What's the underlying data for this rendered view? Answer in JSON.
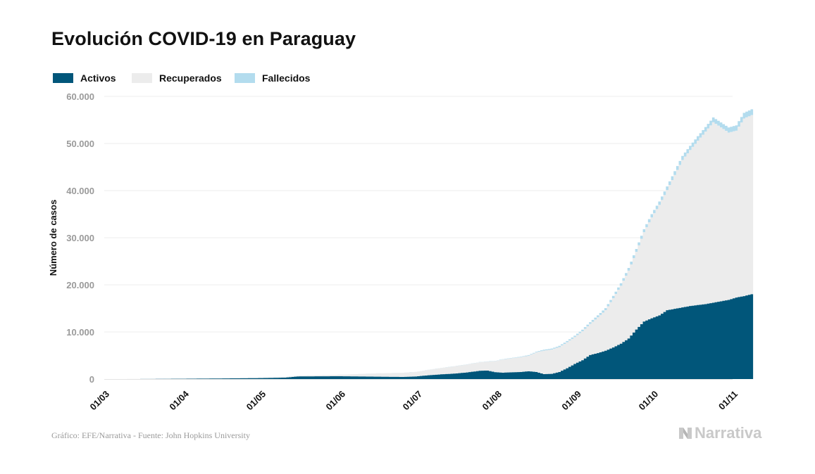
{
  "chart_data": {
    "type": "area",
    "stacked": true,
    "title": "Evolución COVID-19 en Paraguay",
    "ylabel": "Número de casos",
    "xlabel": "",
    "ylim": [
      0,
      60000
    ],
    "y_ticks": [
      0,
      10000,
      20000,
      30000,
      40000,
      50000,
      60000
    ],
    "y_tick_labels": [
      "0",
      "10.000",
      "20.000",
      "30.000",
      "40.000",
      "50.000",
      "60.000"
    ],
    "x_ticks": [
      "2020-03-01",
      "2020-04-01",
      "2020-05-01",
      "2020-06-01",
      "2020-07-01",
      "2020-08-01",
      "2020-09-01",
      "2020-10-01",
      "2020-11-01"
    ],
    "x_tick_labels": [
      "01/03",
      "01/04",
      "01/05",
      "01/06",
      "01/07",
      "01/08",
      "01/09",
      "01/10",
      "01/11"
    ],
    "x_range": [
      "2020-03-01",
      "2020-11-01"
    ],
    "grid": true,
    "legend_position": "top-left",
    "series": [
      {
        "name": "Activos",
        "color": "#01567a",
        "points": [
          [
            "2020-03-01",
            0
          ],
          [
            "2020-03-15",
            10
          ],
          [
            "2020-03-31",
            60
          ],
          [
            "2020-04-15",
            120
          ],
          [
            "2020-04-30",
            200
          ],
          [
            "2020-05-10",
            300
          ],
          [
            "2020-05-15",
            550
          ],
          [
            "2020-05-31",
            600
          ],
          [
            "2020-06-15",
            500
          ],
          [
            "2020-06-25",
            450
          ],
          [
            "2020-06-30",
            550
          ],
          [
            "2020-07-05",
            800
          ],
          [
            "2020-07-10",
            1000
          ],
          [
            "2020-07-15",
            1150
          ],
          [
            "2020-07-20",
            1400
          ],
          [
            "2020-07-25",
            1750
          ],
          [
            "2020-07-28",
            1800
          ],
          [
            "2020-07-31",
            1450
          ],
          [
            "2020-08-03",
            1350
          ],
          [
            "2020-08-05",
            1400
          ],
          [
            "2020-08-10",
            1500
          ],
          [
            "2020-08-13",
            1650
          ],
          [
            "2020-08-16",
            1500
          ],
          [
            "2020-08-19",
            1050
          ],
          [
            "2020-08-22",
            1100
          ],
          [
            "2020-08-25",
            1500
          ],
          [
            "2020-08-28",
            2300
          ],
          [
            "2020-08-31",
            3200
          ],
          [
            "2020-09-03",
            4000
          ],
          [
            "2020-09-06",
            5100
          ],
          [
            "2020-09-09",
            5500
          ],
          [
            "2020-09-12",
            6000
          ],
          [
            "2020-09-15",
            6700
          ],
          [
            "2020-09-18",
            7500
          ],
          [
            "2020-09-21",
            8600
          ],
          [
            "2020-09-24",
            10500
          ],
          [
            "2020-09-27",
            12200
          ],
          [
            "2020-09-30",
            12900
          ],
          [
            "2020-10-03",
            13500
          ],
          [
            "2020-10-06",
            14600
          ],
          [
            "2020-10-09",
            14900
          ],
          [
            "2020-10-12",
            15200
          ],
          [
            "2020-10-15",
            15500
          ],
          [
            "2020-10-18",
            15700
          ],
          [
            "2020-10-21",
            15900
          ],
          [
            "2020-10-24",
            16200
          ],
          [
            "2020-10-27",
            16500
          ],
          [
            "2020-10-30",
            16800
          ],
          [
            "2020-11-02",
            17300
          ],
          [
            "2020-11-05",
            17600
          ],
          [
            "2020-11-08",
            18000
          ]
        ]
      },
      {
        "name": "Recuperados",
        "color": "#ececec",
        "points": [
          [
            "2020-03-01",
            0
          ],
          [
            "2020-03-31",
            10
          ],
          [
            "2020-04-30",
            100
          ],
          [
            "2020-05-15",
            150
          ],
          [
            "2020-05-31",
            300
          ],
          [
            "2020-06-15",
            700
          ],
          [
            "2020-06-30",
            950
          ],
          [
            "2020-07-15",
            1550
          ],
          [
            "2020-07-28",
            1900
          ],
          [
            "2020-08-03",
            2800
          ],
          [
            "2020-08-13",
            3300
          ],
          [
            "2020-08-19",
            5000
          ],
          [
            "2020-08-25",
            5300
          ],
          [
            "2020-08-31",
            5700
          ],
          [
            "2020-09-06",
            6600
          ],
          [
            "2020-09-12",
            8600
          ],
          [
            "2020-09-18",
            12300
          ],
          [
            "2020-09-24",
            16500
          ],
          [
            "2020-09-30",
            21400
          ],
          [
            "2020-10-06",
            25500
          ],
          [
            "2020-10-12",
            31300
          ],
          [
            "2020-10-18",
            34900
          ],
          [
            "2020-10-24",
            38300
          ],
          [
            "2020-10-30",
            35500
          ],
          [
            "2020-11-02",
            35400
          ],
          [
            "2020-11-05",
            37700
          ],
          [
            "2020-11-08",
            38000
          ]
        ]
      },
      {
        "name": "Fallecidos",
        "color": "#b3dcee",
        "points": [
          [
            "2020-03-01",
            0
          ],
          [
            "2020-03-31",
            3
          ],
          [
            "2020-04-30",
            10
          ],
          [
            "2020-05-31",
            11
          ],
          [
            "2020-06-30",
            20
          ],
          [
            "2020-07-15",
            30
          ],
          [
            "2020-07-31",
            50
          ],
          [
            "2020-08-15",
            150
          ],
          [
            "2020-08-31",
            300
          ],
          [
            "2020-09-15",
            500
          ],
          [
            "2020-09-30",
            700
          ],
          [
            "2020-10-15",
            900
          ],
          [
            "2020-10-30",
            1100
          ],
          [
            "2020-11-08",
            1250
          ]
        ]
      }
    ]
  },
  "footer": {
    "source": "Gráfico: EFE/Narrativa - Fuente: John Hopkins University",
    "brand": "Narrativa",
    "brand_color": "#c9c9c9"
  }
}
